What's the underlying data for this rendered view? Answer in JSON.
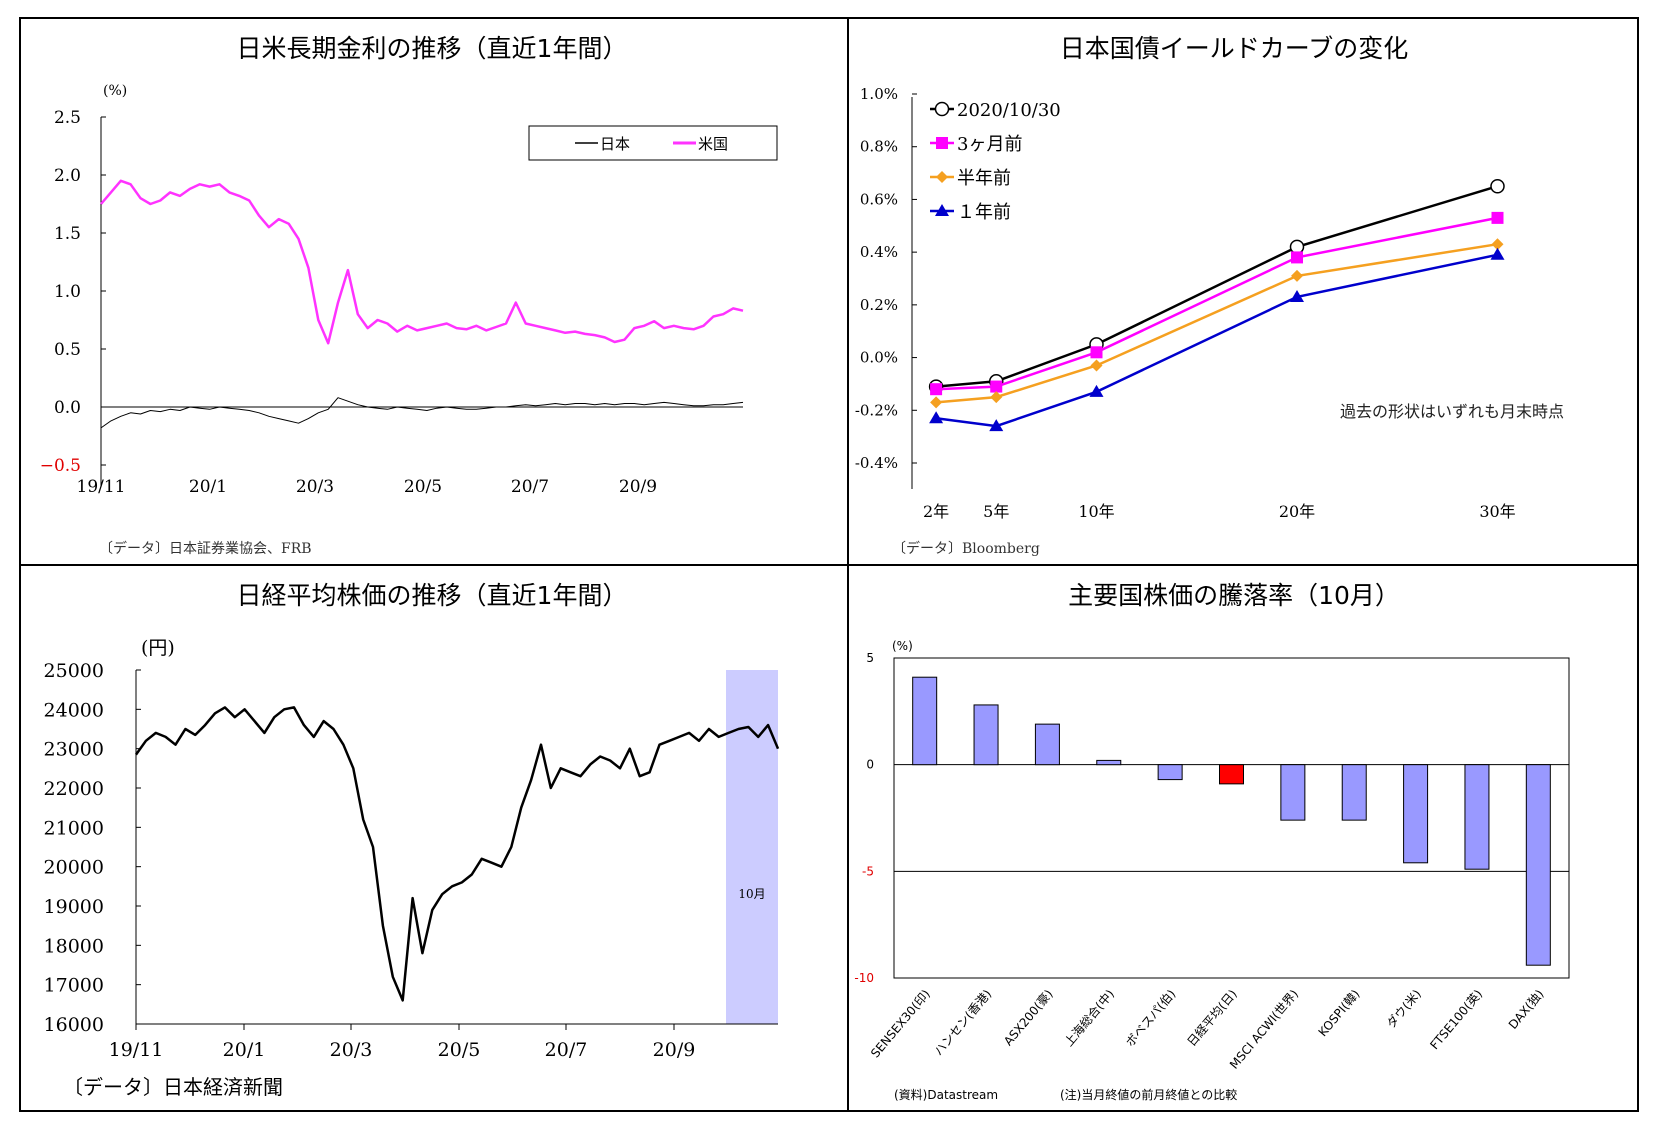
{
  "chart_data": [
    {
      "type": "line",
      "title": "日米長期金利の推移（直近1年間）",
      "ylabel": "(%)",
      "ylim": [
        -0.5,
        2.5
      ],
      "yticks": [
        "2.5",
        "2.0",
        "1.5",
        "1.0",
        "0.5",
        "0.0",
        "−0.5"
      ],
      "yticks_values": [
        2.5,
        2.0,
        1.5,
        1.0,
        0.5,
        0.0,
        -0.5
      ],
      "xticks": [
        "19/11",
        "20/1",
        "20/3",
        "20/5",
        "20/7",
        "20/9"
      ],
      "source": "〔データ〕日本証券業協会、FRB",
      "legend_position": "top-right",
      "series": [
        {
          "name": "日本",
          "color": "#000000",
          "values": [
            -0.18,
            -0.12,
            -0.08,
            -0.05,
            -0.06,
            -0.03,
            -0.04,
            -0.02,
            -0.03,
            0.0,
            -0.01,
            -0.02,
            0.0,
            -0.01,
            -0.02,
            -0.03,
            -0.05,
            -0.08,
            -0.1,
            -0.12,
            -0.14,
            -0.1,
            -0.05,
            -0.02,
            0.08,
            0.05,
            0.02,
            0.0,
            -0.01,
            -0.02,
            0.0,
            -0.01,
            -0.02,
            -0.03,
            -0.01,
            0.0,
            -0.01,
            -0.02,
            -0.02,
            -0.01,
            0.0,
            0.0,
            0.01,
            0.02,
            0.01,
            0.02,
            0.03,
            0.02,
            0.03,
            0.03,
            0.02,
            0.03,
            0.02,
            0.03,
            0.03,
            0.02,
            0.03,
            0.04,
            0.03,
            0.02,
            0.01,
            0.01,
            0.02,
            0.02,
            0.03,
            0.04
          ]
        },
        {
          "name": "米国",
          "color": "#FF33FF",
          "values": [
            1.75,
            1.85,
            1.95,
            1.92,
            1.8,
            1.75,
            1.78,
            1.85,
            1.82,
            1.88,
            1.92,
            1.9,
            1.92,
            1.85,
            1.82,
            1.78,
            1.65,
            1.55,
            1.62,
            1.58,
            1.45,
            1.2,
            0.75,
            0.55,
            0.9,
            1.18,
            0.8,
            0.68,
            0.75,
            0.72,
            0.65,
            0.7,
            0.66,
            0.68,
            0.7,
            0.72,
            0.68,
            0.67,
            0.7,
            0.66,
            0.69,
            0.72,
            0.9,
            0.72,
            0.7,
            0.68,
            0.66,
            0.64,
            0.65,
            0.63,
            0.62,
            0.6,
            0.56,
            0.58,
            0.68,
            0.7,
            0.74,
            0.68,
            0.7,
            0.68,
            0.67,
            0.7,
            0.78,
            0.8,
            0.85,
            0.83
          ]
        }
      ]
    },
    {
      "type": "line",
      "title": "日本国債イールドカーブの変化",
      "categories": [
        "2年",
        "5年",
        "10年",
        "20年",
        "30年"
      ],
      "x_positions": [
        2,
        5,
        10,
        20,
        30
      ],
      "ylim": [
        -0.4,
        1.0
      ],
      "yticks": [
        "1.0%",
        "0.8%",
        "0.6%",
        "0.4%",
        "0.2%",
        "0.0%",
        "-0.2%",
        "-0.4%"
      ],
      "yticks_values": [
        1.0,
        0.8,
        0.6,
        0.4,
        0.2,
        0.0,
        -0.2,
        -0.4
      ],
      "annotation": "過去の形状はいずれも月末時点",
      "source": "〔データ〕Bloomberg",
      "legend_position": "top-left",
      "series": [
        {
          "name": "2020/10/30",
          "color": "#000000",
          "marker": "circle",
          "values": [
            -0.11,
            -0.09,
            0.05,
            0.42,
            0.65
          ]
        },
        {
          "name": "3ヶ月前",
          "color": "#FF00FF",
          "marker": "square",
          "values": [
            -0.12,
            -0.11,
            0.02,
            0.38,
            0.53
          ]
        },
        {
          "name": "半年前",
          "color": "#F5A020",
          "marker": "diamond",
          "values": [
            -0.17,
            -0.15,
            -0.03,
            0.31,
            0.43
          ]
        },
        {
          "name": "１年前",
          "color": "#0000CC",
          "marker": "triangle",
          "values": [
            -0.23,
            -0.26,
            -0.13,
            0.23,
            0.39
          ]
        }
      ]
    },
    {
      "type": "line",
      "title": "日経平均株価の推移（直近1年間）",
      "ylabel": "(円)",
      "ylim": [
        16000,
        25000
      ],
      "yticks": [
        "25000",
        "24000",
        "23000",
        "22000",
        "21000",
        "20000",
        "19000",
        "18000",
        "17000",
        "16000"
      ],
      "yticks_values": [
        25000,
        24000,
        23000,
        22000,
        21000,
        20000,
        19000,
        18000,
        17000,
        16000
      ],
      "xticks": [
        "19/11",
        "20/1",
        "20/3",
        "20/5",
        "20/7",
        "20/9"
      ],
      "highlight_label": "10月",
      "source": "〔データ〕日本経済新聞",
      "series": [
        {
          "name": "",
          "color": "#000000",
          "values": [
            22850,
            23200,
            23400,
            23300,
            23100,
            23500,
            23350,
            23600,
            23900,
            24050,
            23800,
            24000,
            23700,
            23400,
            23800,
            24000,
            24050,
            23600,
            23300,
            23700,
            23500,
            23100,
            22500,
            21200,
            20500,
            18500,
            17200,
            16600,
            19200,
            17800,
            18900,
            19300,
            19500,
            19600,
            19800,
            20200,
            20100,
            20000,
            20500,
            21500,
            22200,
            23100,
            22000,
            22500,
            22400,
            22300,
            22600,
            22800,
            22700,
            22500,
            23000,
            22300,
            22400,
            23100,
            23200,
            23300,
            23400,
            23200,
            23500,
            23300,
            23400,
            23500,
            23550,
            23300,
            23600,
            23000
          ]
        }
      ]
    },
    {
      "type": "bar",
      "title": "主要国株価の騰落率（10月）",
      "ylabel": "(%)",
      "ylim": [
        -10,
        5
      ],
      "yticks": [
        "5",
        "0",
        "-5",
        "-10"
      ],
      "yticks_values": [
        5,
        0,
        -5,
        -10
      ],
      "categories": [
        "SENSEX30(印)",
        "ハンセン(香港)",
        "ASX200(豪)",
        "上海総合(中)",
        "ボベスパ(伯)",
        "日経平均(日)",
        "MSCI ACWI(世界)",
        "KOSPI(韓)",
        "ダウ(米)",
        "FTSE100(英)",
        "DAX(独)"
      ],
      "values": [
        4.1,
        2.8,
        1.9,
        0.2,
        -0.7,
        -0.9,
        -2.6,
        -2.6,
        -4.6,
        -4.9,
        -9.4
      ],
      "bar_color": "#9999FF",
      "highlight_color": "#FF0000",
      "highlight_index": 5,
      "note_source": "(資料)Datastream",
      "note": "(注)当月終値の前月終値との比較"
    }
  ]
}
